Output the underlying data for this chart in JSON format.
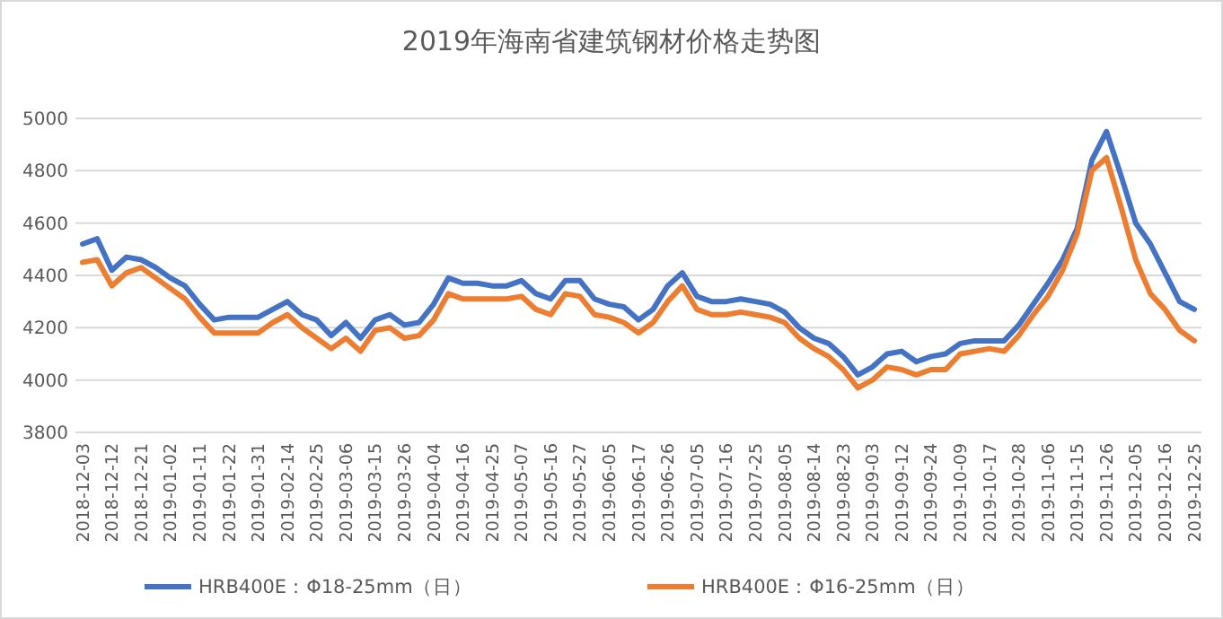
{
  "chart_data": {
    "type": "line",
    "title": "2019年海南省建筑钢材价格走势图",
    "categories": [
      "2018-12-03",
      null,
      "2018-12-12",
      null,
      "2018-12-21",
      null,
      "2019-01-02",
      null,
      "2019-01-11",
      null,
      "2019-01-22",
      null,
      "2019-01-31",
      null,
      "2019-02-14",
      null,
      "2019-02-25",
      null,
      "2019-03-06",
      null,
      "2019-03-15",
      null,
      "2019-03-26",
      null,
      "2019-04-04",
      null,
      "2019-04-16",
      null,
      "2019-04-25",
      null,
      "2019-05-07",
      null,
      "2019-05-16",
      null,
      "2019-05-27",
      null,
      "2019-06-05",
      null,
      "2019-06-17",
      null,
      "2019-06-26",
      null,
      "2019-07-05",
      null,
      "2019-07-16",
      null,
      "2019-07-25",
      null,
      "2019-08-05",
      null,
      "2019-08-14",
      null,
      "2019-08-23",
      null,
      "2019-09-03",
      null,
      "2019-09-12",
      null,
      "2019-09-24",
      null,
      "2019-10-09",
      null,
      "2019-10-17",
      null,
      "2019-10-28",
      null,
      "2019-11-06",
      null,
      "2019-11-15",
      null,
      "2019-11-26",
      null,
      "2019-12-05",
      null,
      "2019-12-16",
      null,
      "2019-12-25"
    ],
    "series": [
      {
        "name": "HRB400E：Φ18-25mm（日）",
        "color": "#4472c4",
        "values": [
          4520,
          4540,
          4420,
          4470,
          4460,
          4430,
          4390,
          4360,
          4290,
          4230,
          4240,
          4240,
          4240,
          4270,
          4300,
          4250,
          4230,
          4170,
          4220,
          4160,
          4230,
          4250,
          4210,
          4220,
          4290,
          4390,
          4370,
          4370,
          4360,
          4360,
          4380,
          4330,
          4310,
          4380,
          4380,
          4310,
          4290,
          4280,
          4230,
          4270,
          4360,
          4410,
          4320,
          4300,
          4300,
          4310,
          4300,
          4290,
          4260,
          4200,
          4160,
          4140,
          4090,
          4020,
          4050,
          4100,
          4110,
          4070,
          4090,
          4100,
          4140,
          4150,
          4150,
          4150,
          4210,
          4290,
          4370,
          4460,
          4580,
          4840,
          4950,
          4780,
          4600,
          4520,
          4410,
          4300,
          4270
        ]
      },
      {
        "name": "HRB400E：Φ16-25mm（日）",
        "color": "#ed7d31",
        "values": [
          4450,
          4460,
          4360,
          4410,
          4430,
          4390,
          4350,
          4310,
          4240,
          4180,
          4180,
          4180,
          4180,
          4220,
          4250,
          4200,
          4160,
          4120,
          4160,
          4110,
          4190,
          4200,
          4160,
          4170,
          4230,
          4330,
          4310,
          4310,
          4310,
          4310,
          4320,
          4270,
          4250,
          4330,
          4320,
          4250,
          4240,
          4220,
          4180,
          4220,
          4300,
          4360,
          4270,
          4250,
          4250,
          4260,
          4250,
          4240,
          4220,
          4160,
          4120,
          4090,
          4040,
          3970,
          4000,
          4050,
          4040,
          4020,
          4040,
          4040,
          4100,
          4110,
          4120,
          4110,
          4170,
          4250,
          4320,
          4420,
          4560,
          4800,
          4850,
          4660,
          4460,
          4330,
          4270,
          4190,
          4150
        ]
      }
    ],
    "ylim": [
      3800,
      5000
    ],
    "yticks": [
      3800,
      4000,
      4200,
      4400,
      4600,
      4800,
      5000
    ],
    "grid": "y",
    "legend": "bottom"
  }
}
